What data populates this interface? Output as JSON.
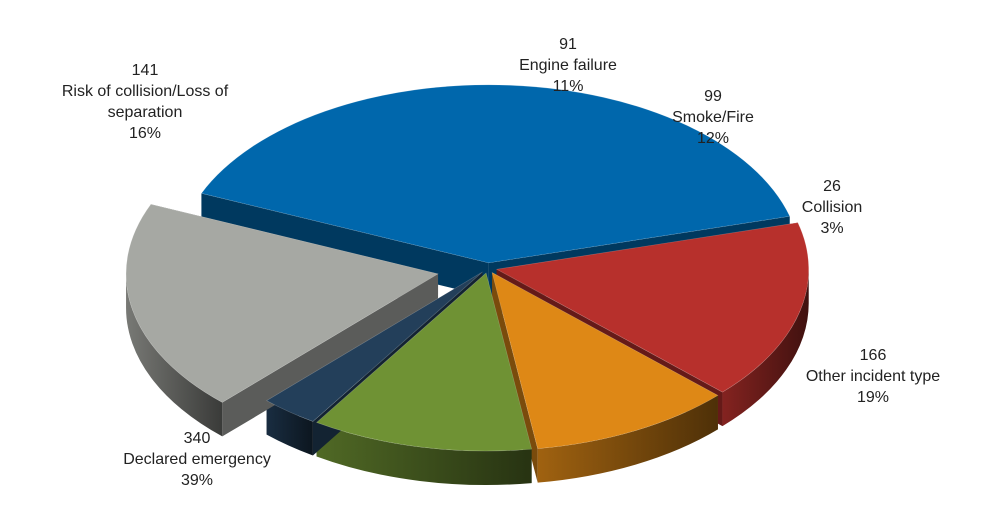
{
  "chart_data": {
    "type": "pie",
    "title": "",
    "slices": [
      {
        "label": "Declared emergency",
        "value": 340,
        "percent": "39%",
        "color": "#0067AC",
        "exploded": false
      },
      {
        "label": "Risk of collision/Loss of separation",
        "label_lines": [
          "Risk of collision/Loss of",
          "separation"
        ],
        "value": 141,
        "percent": "16%",
        "color": "#B7302C",
        "exploded": false
      },
      {
        "label": "Engine failure",
        "value": 91,
        "percent": "11%",
        "color": "#DE8816",
        "exploded": false
      },
      {
        "label": "Smoke/Fire",
        "value": 99,
        "percent": "12%",
        "color": "#6F9234",
        "exploded": false
      },
      {
        "label": "Collision",
        "value": 26,
        "percent": "3%",
        "color": "#233F5A",
        "exploded": false
      },
      {
        "label": "Other incident type",
        "value": 166,
        "percent": "19%",
        "color": "#A6A8A3",
        "exploded": true
      }
    ],
    "legend": "none",
    "style": "3d-exploded-pie"
  }
}
